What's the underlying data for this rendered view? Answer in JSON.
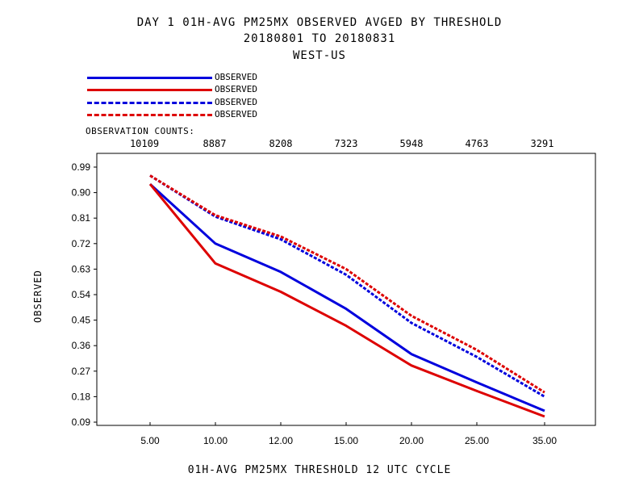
{
  "header": {
    "title_line1": "DAY 1    01H-AVG PM25MX OBSERVED    AVGED BY THRESHOLD",
    "title_line2": "20180801 TO 20180831",
    "title_line3": "WEST-US"
  },
  "legend": [
    {
      "label": "OBSERVED",
      "color": "#0000dd",
      "style": "solid"
    },
    {
      "label": "OBSERVED",
      "color": "#dd0000",
      "style": "solid"
    },
    {
      "label": "OBSERVED",
      "color": "#0000dd",
      "style": "dashed"
    },
    {
      "label": "OBSERVED",
      "color": "#dd0000",
      "style": "dashed"
    }
  ],
  "observation_counts": {
    "heading": "OBSERVATION COUNTS:",
    "values": [
      "10109",
      "8887",
      "8208",
      "7323",
      "5948",
      "4763",
      "3291"
    ]
  },
  "chart_data": {
    "type": "line",
    "title": "DAY 1    01H-AVG PM25MX OBSERVED    AVGED BY THRESHOLD",
    "xlabel": "01H-AVG PM25MX THRESHOLD     12 UTC CYCLE",
    "ylabel": "OBSERVED",
    "categories": [
      "5.00",
      "10.00",
      "12.00",
      "15.00",
      "20.00",
      "25.00",
      "35.00"
    ],
    "yticks": [
      "0.99",
      "0.90",
      "0.81",
      "0.72",
      "0.63",
      "0.54",
      "0.45",
      "0.36",
      "0.27",
      "0.18",
      "0.09"
    ],
    "ylim": [
      0.09,
      0.99
    ],
    "grid": false,
    "series": [
      {
        "name": "OBSERVED",
        "color": "#0000dd",
        "style": "solid",
        "values": [
          0.93,
          0.72,
          0.62,
          0.49,
          0.33,
          0.23,
          0.13
        ]
      },
      {
        "name": "OBSERVED",
        "color": "#dd0000",
        "style": "solid",
        "values": [
          0.93,
          0.65,
          0.55,
          0.43,
          0.29,
          0.2,
          0.11
        ]
      },
      {
        "name": "OBSERVED",
        "color": "#0000dd",
        "style": "dashed",
        "values": [
          0.96,
          0.815,
          0.735,
          0.61,
          0.44,
          0.32,
          0.18
        ]
      },
      {
        "name": "OBSERVED",
        "color": "#dd0000",
        "style": "dashed",
        "values": [
          0.96,
          0.82,
          0.745,
          0.63,
          0.465,
          0.345,
          0.195
        ]
      }
    ]
  }
}
